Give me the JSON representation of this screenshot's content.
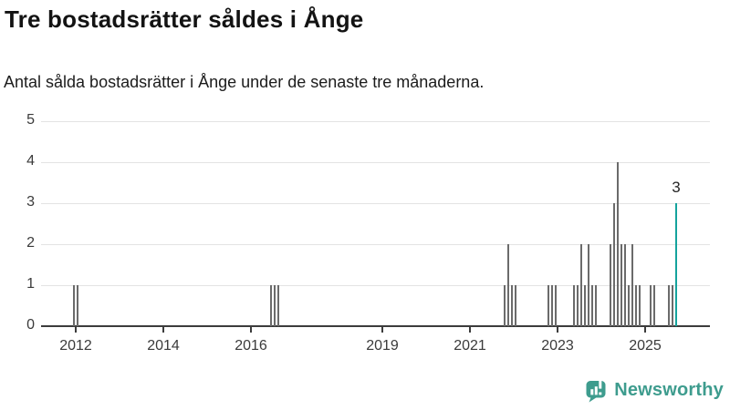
{
  "header": {
    "title": "Tre bostadsrätter såldes i Ånge",
    "subtitle": "Antal sålda bostadsrätter i Ånge under de senaste tre månaderna."
  },
  "chart_data": {
    "type": "bar",
    "title": "Tre bostadsrätter såldes i Ånge",
    "subtitle": "Antal sålda bostadsrätter i Ånge under de senaste tre månaderna.",
    "xlabel": "",
    "ylabel": "",
    "x_ticks": [
      2012,
      2014,
      2016,
      2019,
      2021,
      2023,
      2025
    ],
    "y_ticks": [
      0,
      1,
      2,
      3,
      4,
      5
    ],
    "ylim": [
      0,
      5
    ],
    "xlim": [
      2011.2,
      2026.5
    ],
    "grid": "horizontal",
    "legend": "none",
    "bar_color": "#6b6b6b",
    "highlight_color": "#14a39d",
    "axis_color": "#3c3c3c",
    "annotation": {
      "text": "3",
      "x": 2025.708,
      "y": 3
    },
    "series": [
      {
        "x": 2011.958,
        "y": 1
      },
      {
        "x": 2012.042,
        "y": 1
      },
      {
        "x": 2016.458,
        "y": 1
      },
      {
        "x": 2016.542,
        "y": 1
      },
      {
        "x": 2016.625,
        "y": 1
      },
      {
        "x": 2021.792,
        "y": 1
      },
      {
        "x": 2021.875,
        "y": 2
      },
      {
        "x": 2021.958,
        "y": 1
      },
      {
        "x": 2022.042,
        "y": 1
      },
      {
        "x": 2022.792,
        "y": 1
      },
      {
        "x": 2022.875,
        "y": 1
      },
      {
        "x": 2022.958,
        "y": 1
      },
      {
        "x": 2023.375,
        "y": 1
      },
      {
        "x": 2023.458,
        "y": 1
      },
      {
        "x": 2023.542,
        "y": 2
      },
      {
        "x": 2023.625,
        "y": 1
      },
      {
        "x": 2023.708,
        "y": 2
      },
      {
        "x": 2023.792,
        "y": 1
      },
      {
        "x": 2023.875,
        "y": 1
      },
      {
        "x": 2024.208,
        "y": 2
      },
      {
        "x": 2024.292,
        "y": 3
      },
      {
        "x": 2024.375,
        "y": 4
      },
      {
        "x": 2024.458,
        "y": 2
      },
      {
        "x": 2024.542,
        "y": 2
      },
      {
        "x": 2024.625,
        "y": 1
      },
      {
        "x": 2024.708,
        "y": 2
      },
      {
        "x": 2024.792,
        "y": 1
      },
      {
        "x": 2024.875,
        "y": 1
      },
      {
        "x": 2025.125,
        "y": 1
      },
      {
        "x": 2025.208,
        "y": 1
      },
      {
        "x": 2025.542,
        "y": 1
      },
      {
        "x": 2025.625,
        "y": 1
      },
      {
        "x": 2025.708,
        "y": 3,
        "highlight": true
      }
    ]
  },
  "footer": {
    "brand": "Newsworthy",
    "brand_color": "#3e9c8e",
    "logo_icon": "bar-chart-speech-bubble-icon"
  }
}
